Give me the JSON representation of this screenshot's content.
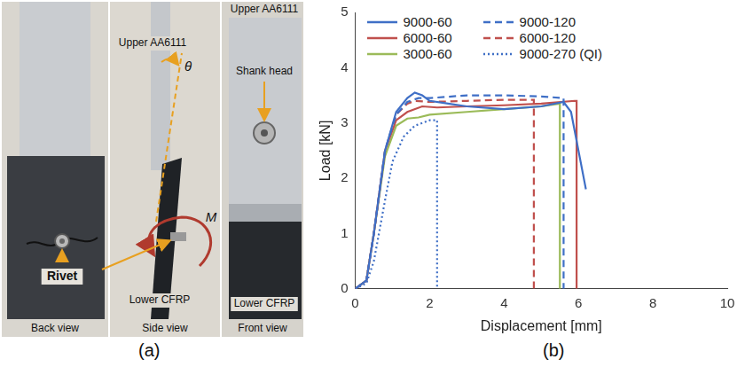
{
  "panel_a": {
    "label": "(a)",
    "texts": {
      "upper_side": "Upper AA6111",
      "theta": "θ",
      "upper_front": "Upper AA6111",
      "shank_head": "Shank head",
      "rivet": "Rivet",
      "moment": "M",
      "lower_side": "Lower CFRP",
      "lower_front": "Lower CFRP",
      "back_view": "Back view",
      "side_view": "Side view",
      "front_view": "Front view"
    }
  },
  "chart_data": {
    "type": "line",
    "label": "(b)",
    "x_label": "Displacement [mm]",
    "y_label": "Load [kN]",
    "xlim": [
      0,
      10
    ],
    "xticks": [
      0,
      2,
      4,
      6,
      8,
      10
    ],
    "ylim": [
      0,
      5
    ],
    "yticks": [
      0,
      1,
      2,
      3,
      4,
      5
    ],
    "grid": false,
    "legend": "top",
    "series": [
      {
        "name": "9000-60",
        "color": "#3f6fc6",
        "line_style": "solid",
        "x": [
          0,
          0.3,
          0.5,
          0.8,
          1.1,
          1.4,
          1.6,
          1.8,
          2.0,
          2.5,
          3.0,
          4.0,
          5.0,
          5.6,
          5.8,
          6.0,
          6.2
        ],
        "values": [
          0,
          0.15,
          1.0,
          2.5,
          3.2,
          3.45,
          3.55,
          3.5,
          3.4,
          3.35,
          3.3,
          3.25,
          3.3,
          3.38,
          3.2,
          2.5,
          1.8
        ]
      },
      {
        "name": "9000-120",
        "color": "#3f6fc6",
        "line_style": "dashed",
        "x": [
          0,
          0.3,
          0.5,
          0.8,
          1.1,
          1.4,
          1.7,
          2.0,
          3.0,
          4.0,
          5.0,
          5.6,
          5.6
        ],
        "values": [
          0,
          0.15,
          1.0,
          2.5,
          3.15,
          3.38,
          3.45,
          3.45,
          3.5,
          3.5,
          3.48,
          3.45,
          0
        ]
      },
      {
        "name": "6000-60",
        "color": "#c0504d",
        "line_style": "solid",
        "x": [
          0,
          0.3,
          0.5,
          0.8,
          1.1,
          1.4,
          1.8,
          2.2,
          3.0,
          4.0,
          5.0,
          5.9,
          5.95,
          5.95
        ],
        "values": [
          0,
          0.15,
          1.0,
          2.5,
          3.05,
          3.2,
          3.3,
          3.28,
          3.3,
          3.32,
          3.35,
          3.4,
          3.4,
          0
        ]
      },
      {
        "name": "6000-120",
        "color": "#c0504d",
        "line_style": "dashed",
        "x": [
          0,
          0.3,
          0.5,
          0.8,
          1.1,
          1.4,
          1.6,
          2.0,
          3.0,
          4.0,
          4.8,
          4.8
        ],
        "values": [
          0,
          0.15,
          1.0,
          2.5,
          3.15,
          3.35,
          3.4,
          3.38,
          3.4,
          3.42,
          3.42,
          0
        ]
      },
      {
        "name": "3000-60",
        "color": "#9bbb59",
        "line_style": "solid",
        "x": [
          0,
          0.3,
          0.5,
          0.8,
          1.1,
          1.4,
          1.7,
          2.0,
          3.0,
          4.0,
          5.0,
          5.5,
          5.5
        ],
        "values": [
          0,
          0.15,
          1.0,
          2.4,
          2.95,
          3.08,
          3.1,
          3.15,
          3.2,
          3.25,
          3.3,
          3.35,
          0
        ]
      },
      {
        "name": "9000-270 (QI)",
        "color": "#3f6fc6",
        "line_style": "dotted",
        "x": [
          0,
          0.3,
          0.5,
          0.8,
          1.0,
          1.3,
          1.6,
          2.0,
          2.2,
          2.2
        ],
        "values": [
          0,
          0.1,
          0.5,
          1.6,
          2.3,
          2.75,
          2.95,
          3.05,
          3.05,
          0
        ]
      }
    ]
  }
}
